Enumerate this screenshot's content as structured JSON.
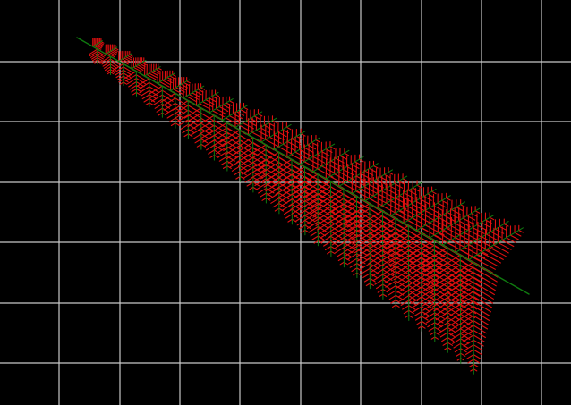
{
  "canvas": {
    "background_color": "#000000",
    "grid_color": "#c8c8c8",
    "stem_color": "#0f7a0f",
    "frond_color": "#e01010"
  },
  "scene": {
    "subject": "fern-frond",
    "grid": true,
    "pinna_count": 30
  }
}
